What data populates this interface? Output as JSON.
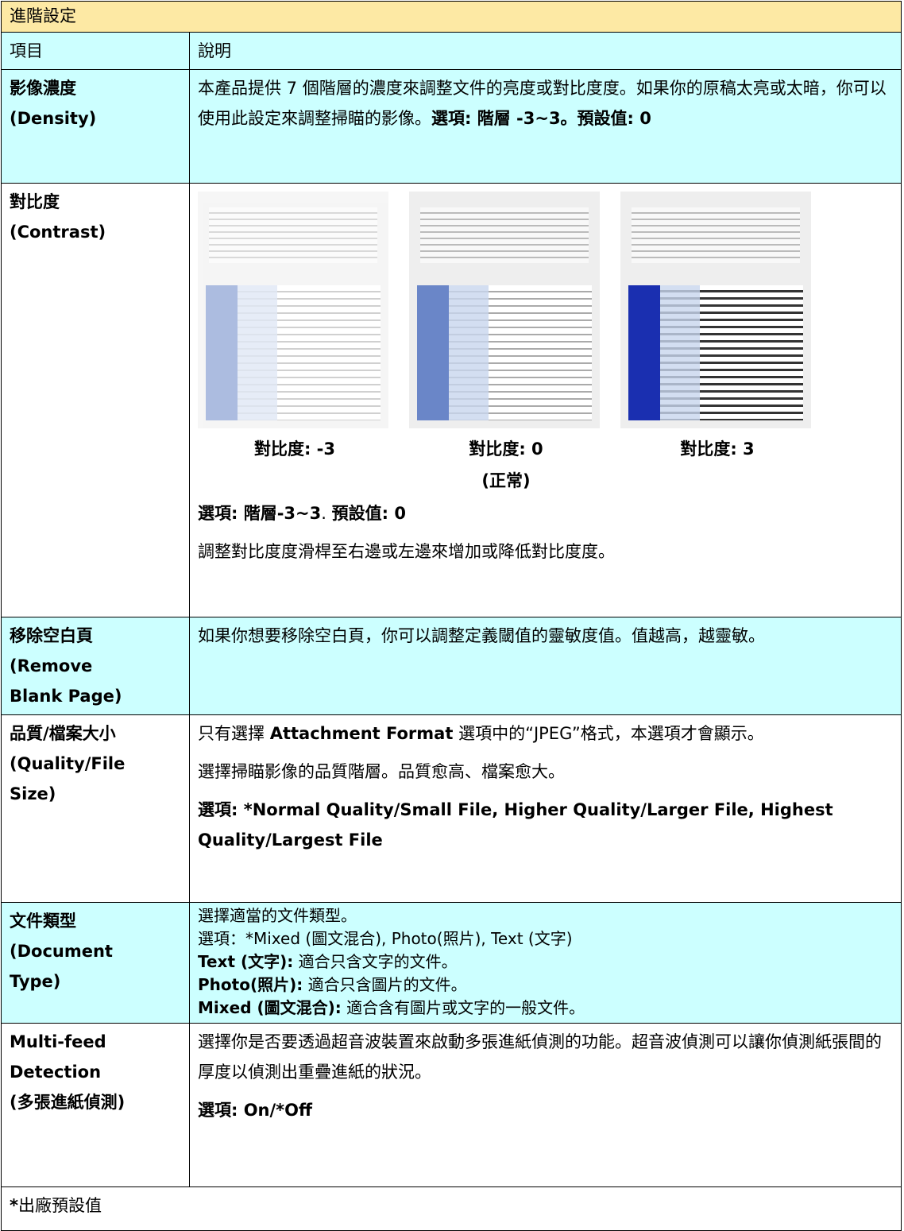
{
  "header": {
    "title": "進階設定"
  },
  "table": {
    "columns": [
      "項目",
      "說明"
    ],
    "rows": [
      {
        "item": [
          "影像濃度",
          "(Density)"
        ],
        "description": [
          {
            "segments": [
              {
                "text": "本產品提供 7 個階層的濃度來調整文件的亮度或對比度度。如果你的原稿太亮或太暗，你可以使用此設定來調整掃瞄的影像。"
              },
              {
                "text": "選項: 階層 -3~3。預設值: 0",
                "bold": true
              }
            ]
          }
        ]
      },
      {
        "item": [
          "對比度",
          "(Contrast)"
        ],
        "description": [
          {
            "captions": [
              [
                "對比度: -3"
              ],
              [
                "對比度: 0",
                "(正常)"
              ],
              [
                "對比度: 3"
              ]
            ]
          },
          {
            "segments": [
              {
                "text": "選項: 階層-3~3",
                "bold": true
              },
              {
                "text": ". "
              },
              {
                "text": "預設值: 0",
                "bold": true
              }
            ]
          },
          {
            "segments": [
              {
                "text": "調整對比度度滑桿至右邊或左邊來增加或降低對比度度。"
              }
            ]
          }
        ]
      },
      {
        "item": [
          "移除空白頁",
          "(Remove",
          "Blank Page)"
        ],
        "description": [
          {
            "segments": [
              {
                "text": "如果你想要移除空白頁，你可以調整定義閾值的靈敏度值。值越高，越靈敏。"
              }
            ]
          }
        ]
      },
      {
        "item": [
          "品質/檔案大小",
          "(Quality/File",
          "Size)"
        ],
        "description": [
          {
            "segments": [
              {
                "text": "只有選擇 "
              },
              {
                "text": "Attachment Format",
                "bold": true
              },
              {
                "text": " 選項中的“JPEG”格式，本選項才會顯示。"
              }
            ]
          },
          {
            "segments": [
              {
                "text": "選擇掃瞄影像的品質階層。品質愈高、檔案愈大。"
              }
            ]
          },
          {
            "segments": [
              {
                "text": "選項: *Normal Quality/Small File, Higher Quality/Larger File, Highest Quality/Largest File",
                "bold": true
              }
            ]
          }
        ]
      },
      {
        "item": [
          "文件類型",
          "(Document",
          "Type)"
        ],
        "compact": true,
        "description": [
          {
            "segments": [
              {
                "text": "選擇適當的文件類型。"
              }
            ]
          },
          {
            "segments": [
              {
                "text": "選項：*Mixed (圖文混合), Photo(照片), Text (文字)"
              }
            ]
          },
          {
            "segments": [
              {
                "text": "Text (文字):",
                "bold": true
              },
              {
                "text": " 適合只含文字的文件。"
              }
            ]
          },
          {
            "segments": [
              {
                "text": "Photo(照片):",
                "bold": true
              },
              {
                "text": " 適合只含圖片的文件。"
              }
            ]
          },
          {
            "segments": [
              {
                "text": "Mixed (圖文混合):",
                "bold": true
              },
              {
                "text": " 適合含有圖片或文字的一般文件。"
              }
            ]
          }
        ]
      },
      {
        "item": [
          "Multi-feed",
          "Detection",
          "(多張進紙偵測)"
        ],
        "description": [
          {
            "segments": [
              {
                "text": "選擇你是否要透過超音波裝置來啟動多張進紙偵測的功能。超音波偵測可以讓你偵測紙張間的厚度以偵測出重疊進紙的狀況。"
              }
            ]
          },
          {
            "segments": [
              {
                "text": "選項: On/*Off",
                "bold": true
              }
            ]
          }
        ]
      }
    ]
  },
  "footer": [
    {
      "text": "*",
      "bold": true
    },
    {
      "text": "出廠預設值"
    }
  ]
}
